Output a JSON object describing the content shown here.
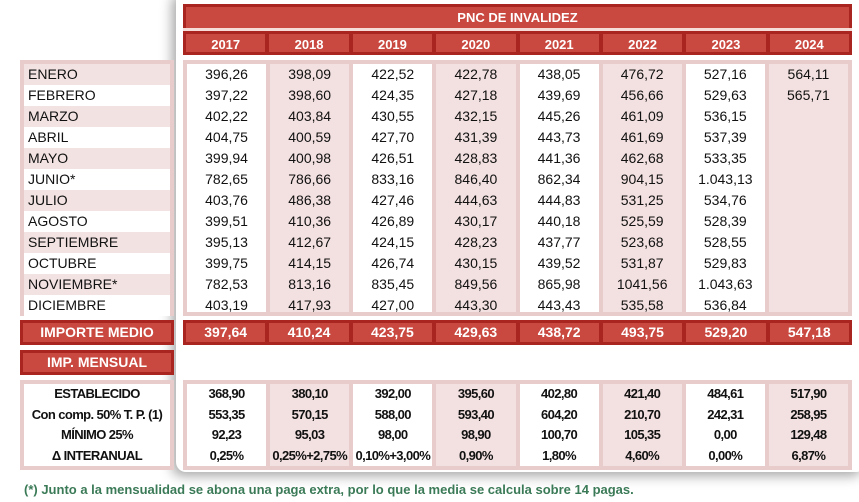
{
  "title": "PNC DE INVALIDEZ",
  "years": [
    "2017",
    "2018",
    "2019",
    "2020",
    "2021",
    "2022",
    "2023",
    "2024"
  ],
  "months": [
    "ENERO",
    "FEBRERO",
    "MARZO",
    "ABRIL",
    "MAYO",
    "JUNIO*",
    "JULIO",
    "AGOSTO",
    "SEPTIEMBRE",
    "OCTUBRE",
    "NOVIEMBRE*",
    "DICIEMBRE"
  ],
  "values": [
    [
      "396,26",
      "397,22",
      "402,22",
      "404,75",
      "399,94",
      "782,65",
      "403,76",
      "399,51",
      "395,13",
      "399,75",
      "782,53",
      "403,19"
    ],
    [
      "398,09",
      "398,60",
      "403,84",
      "400,59",
      "400,98",
      "786,66",
      "486,38",
      "410,36",
      "412,67",
      "414,15",
      "813,16",
      "417,93"
    ],
    [
      "422,52",
      "424,35",
      "430,55",
      "427,70",
      "426,51",
      "833,16",
      "427,46",
      "426,89",
      "424,15",
      "426,74",
      "835,45",
      "427,00"
    ],
    [
      "422,78",
      "427,18",
      "432,15",
      "431,39",
      "428,83",
      "846,40",
      "444,63",
      "430,17",
      "428,23",
      "430,15",
      "849,56",
      "443,30"
    ],
    [
      "438,05",
      "439,69",
      "445,26",
      "443,73",
      "441,36",
      "862,34",
      "444,83",
      "440,18",
      "437,77",
      "439,52",
      "865,98",
      "443,43"
    ],
    [
      "476,72",
      "456,66",
      "461,09",
      "461,69",
      "462,68",
      "904,15",
      "531,25",
      "525,59",
      "523,68",
      "531,87",
      "1041,56",
      "535,58"
    ],
    [
      "527,16",
      "529,63",
      "536,15",
      "537,39",
      "533,35",
      "1.043,13",
      "534,76",
      "528,39",
      "528,55",
      "529,83",
      "1.043,63",
      "536,84"
    ],
    [
      "564,11",
      "565,71",
      "",
      "",
      "",
      "",
      "",
      "",
      "",
      "",
      "",
      ""
    ]
  ],
  "importe_medio": {
    "label": "IMPORTE MEDIO",
    "values": [
      "397,64",
      "410,24",
      "423,75",
      "429,63",
      "438,72",
      "493,75",
      "529,20",
      "547,18"
    ]
  },
  "imp_mensual": {
    "label": "IMP. MENSUAL"
  },
  "mensual_labels": [
    "ESTABLECIDO",
    "Con comp. 50% T. P. (1)",
    "MÍNIMO 25%",
    "Δ INTERANUAL"
  ],
  "mensual_values": [
    [
      "368,90",
      "553,35",
      "92,23",
      "0,25%"
    ],
    [
      "380,10",
      "570,15",
      "95,03",
      "0,25%+2,75%"
    ],
    [
      "392,00",
      "588,00",
      "98,00",
      "0,10%+3,00%"
    ],
    [
      "395,60",
      "593,40",
      "98,90",
      "0,90%"
    ],
    [
      "402,80",
      "604,20",
      "100,70",
      "1,80%"
    ],
    [
      "421,40",
      "210,70",
      "105,35",
      "4,60%"
    ],
    [
      "484,61",
      "242,31",
      "0,00",
      "0,00%"
    ],
    [
      "517,90",
      "258,95",
      "129,48",
      "6,87%"
    ]
  ],
  "footnote": "(*) Junto a la mensualidad se abona una paga extra, por lo que la media se calcula sobre 14 pagas.",
  "colors": {
    "header_red": "#c9483f",
    "dark_red": "#a8261f",
    "pink": "#f3e0e0",
    "footnote_green": "#3b7a57"
  }
}
